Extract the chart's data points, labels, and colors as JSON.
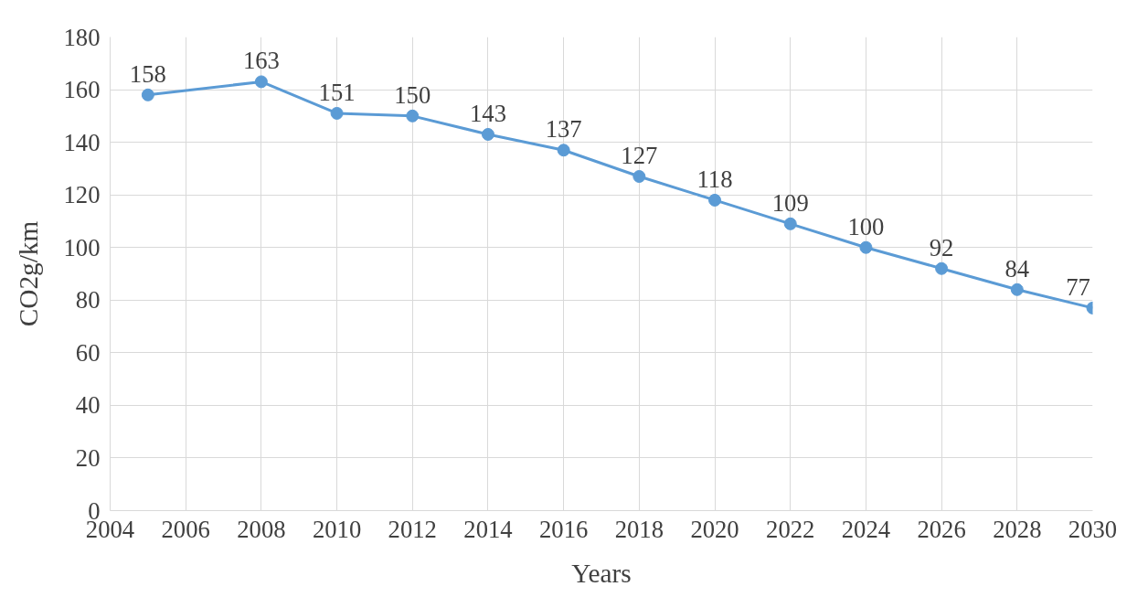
{
  "chart_data": {
    "type": "line",
    "xlabel": "Years",
    "ylabel": "CO2g/km",
    "x": [
      2005,
      2008,
      2010,
      2012,
      2014,
      2016,
      2018,
      2020,
      2022,
      2024,
      2026,
      2028,
      2030
    ],
    "series": [
      {
        "color": "#5b9bd5",
        "values": [
          158,
          163,
          151,
          150,
          143,
          137,
          127,
          118,
          109,
          100,
          92,
          84,
          77
        ]
      }
    ],
    "xlim": [
      2004,
      2030
    ],
    "ylim": [
      0,
      180
    ],
    "xticks": [
      2004,
      2006,
      2008,
      2010,
      2012,
      2014,
      2016,
      2018,
      2020,
      2022,
      2024,
      2026,
      2028,
      2030
    ],
    "yticks": [
      0,
      20,
      40,
      60,
      80,
      100,
      120,
      140,
      160,
      180
    ],
    "grid": true,
    "marker": "circle",
    "line_style": "solid",
    "data_labels": true
  }
}
